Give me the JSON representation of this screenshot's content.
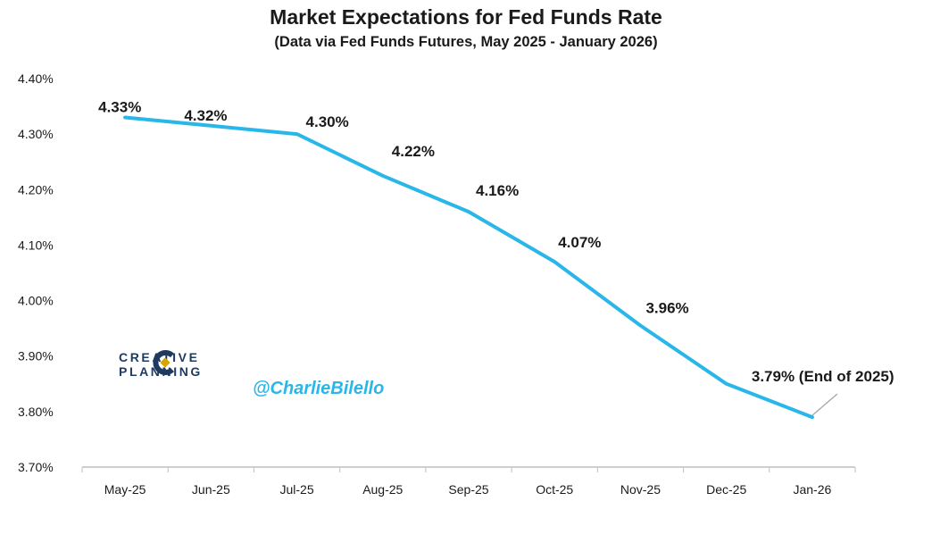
{
  "title": "Market Expectations for Fed Funds Rate",
  "subtitle": "(Data via Fed Funds Futures, May 2025 - January 2026)",
  "logo": {
    "line1": "CREATIVE",
    "line2": "PLANNING"
  },
  "handle": "@CharlieBilello",
  "colors": {
    "line": "#29b6e8",
    "axis": "#bfbfbf",
    "text": "#1a1a1a",
    "logo": "#1f3a5f"
  },
  "chart_data": {
    "type": "line",
    "title": "Market Expectations for Fed Funds Rate",
    "subtitle": "(Data via Fed Funds Futures, May 2025 - January 2026)",
    "categories": [
      "May-25",
      "Jun-25",
      "Jul-25",
      "Aug-25",
      "Sep-25",
      "Oct-25",
      "Nov-25",
      "Dec-25",
      "Jan-26"
    ],
    "series": [
      {
        "values": [
          4.33,
          4.315,
          4.3,
          4.225,
          4.16,
          4.07,
          3.955,
          3.85,
          3.79
        ]
      }
    ],
    "data_labels": [
      "4.33%",
      "4.32%",
      "4.30%",
      "4.22%",
      "4.16%",
      "4.07%",
      "3.96%",
      "",
      "3.79% (End of 2025)"
    ],
    "ylim": [
      3.7,
      4.4
    ],
    "yticks": [
      4.4,
      4.3,
      4.2,
      4.1,
      4.0,
      3.9,
      3.8,
      3.7
    ],
    "ytick_labels": [
      "4.40%",
      "4.30%",
      "4.20%",
      "4.10%",
      "4.00%",
      "3.90%",
      "3.80%",
      "3.70%"
    ],
    "grid": false,
    "legend": "none"
  }
}
